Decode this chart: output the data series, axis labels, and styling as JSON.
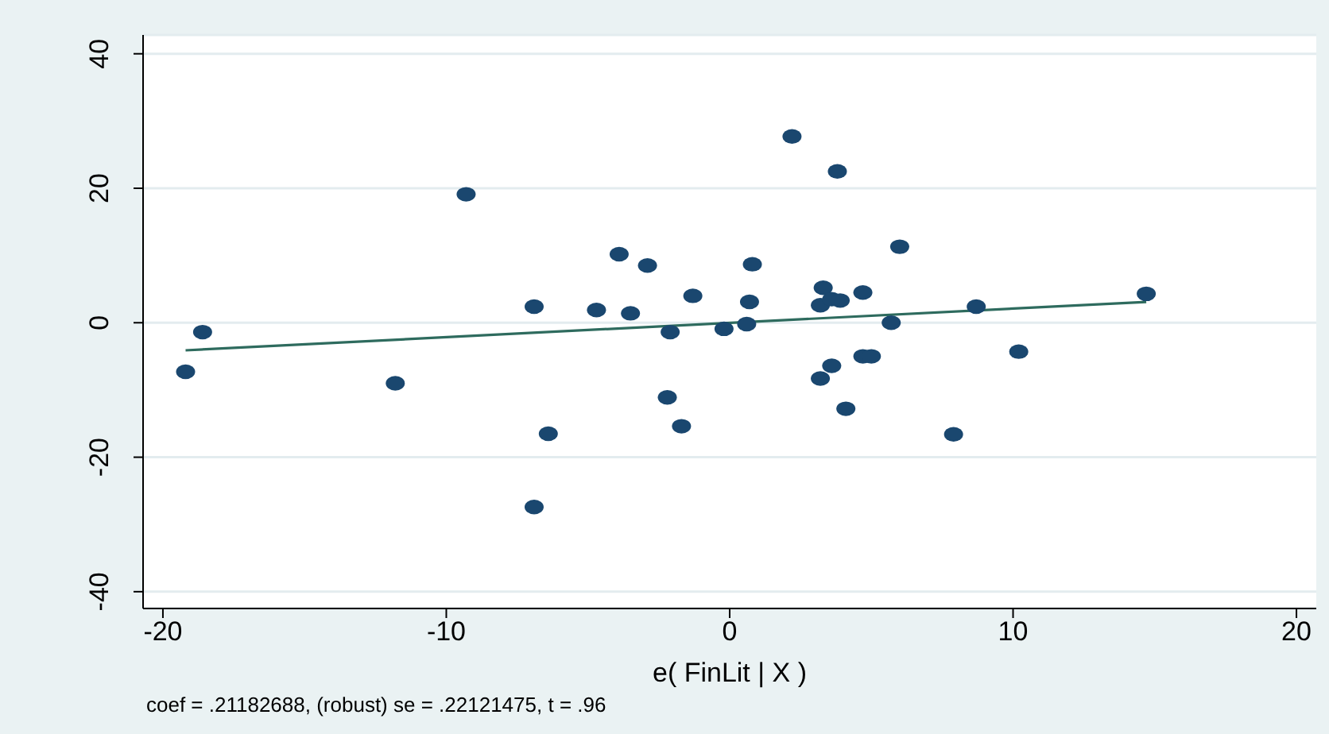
{
  "chart_data": {
    "type": "scatter",
    "xlabel": "e( FinLit | X )",
    "xlim": [
      -20.7,
      20.7
    ],
    "xticks": [
      {
        "value": -20,
        "label": "-20"
      },
      {
        "value": -10,
        "label": "-10"
      },
      0,
      10,
      20
    ],
    "ylim": [
      -42.5,
      42.8
    ],
    "yticks": [
      {
        "value": -40,
        "label": "-40"
      },
      {
        "value": -20,
        "label": "-20"
      },
      0,
      20,
      40
    ],
    "grid": "y",
    "legend": false,
    "marker": "circle",
    "annotations": [
      "coef = .21182688, (robust) se = .22121475, t = .96"
    ],
    "series": [
      {
        "color": "#1a476f",
        "x": [
          -19.2,
          -18.6,
          -11.8,
          -9.3,
          -6.9,
          -6.4,
          -6.9,
          -4.7,
          -3.5,
          -3.9,
          -2.9,
          -2.1,
          -2.2,
          -1.7,
          -1.3,
          -0.2,
          0.7,
          0.6,
          0.8,
          2.2,
          3.8,
          3.3,
          3.2,
          3.6,
          3.9,
          4.7,
          6.0,
          5.7,
          4.7,
          5.0,
          3.6,
          3.2,
          4.1,
          7.9,
          8.7,
          10.2,
          14.7
        ],
        "values": [
          -7.3,
          -1.4,
          -9.0,
          19.1,
          2.4,
          -16.5,
          -27.4,
          1.9,
          1.4,
          10.2,
          8.5,
          -1.4,
          -11.1,
          -15.4,
          4.0,
          -0.9,
          3.1,
          -0.2,
          8.7,
          27.7,
          22.5,
          5.2,
          2.6,
          3.5,
          3.3,
          4.5,
          11.3,
          0.0,
          -5.0,
          -5.0,
          -6.4,
          -8.3,
          -12.8,
          -16.6,
          2.4,
          -4.3,
          4.3
        ]
      },
      {
        "type": "line",
        "color": "#2e6b5e",
        "marker": "none",
        "x": [
          -19.2,
          14.7
        ],
        "values": [
          -4.1,
          3.1
        ]
      }
    ]
  }
}
